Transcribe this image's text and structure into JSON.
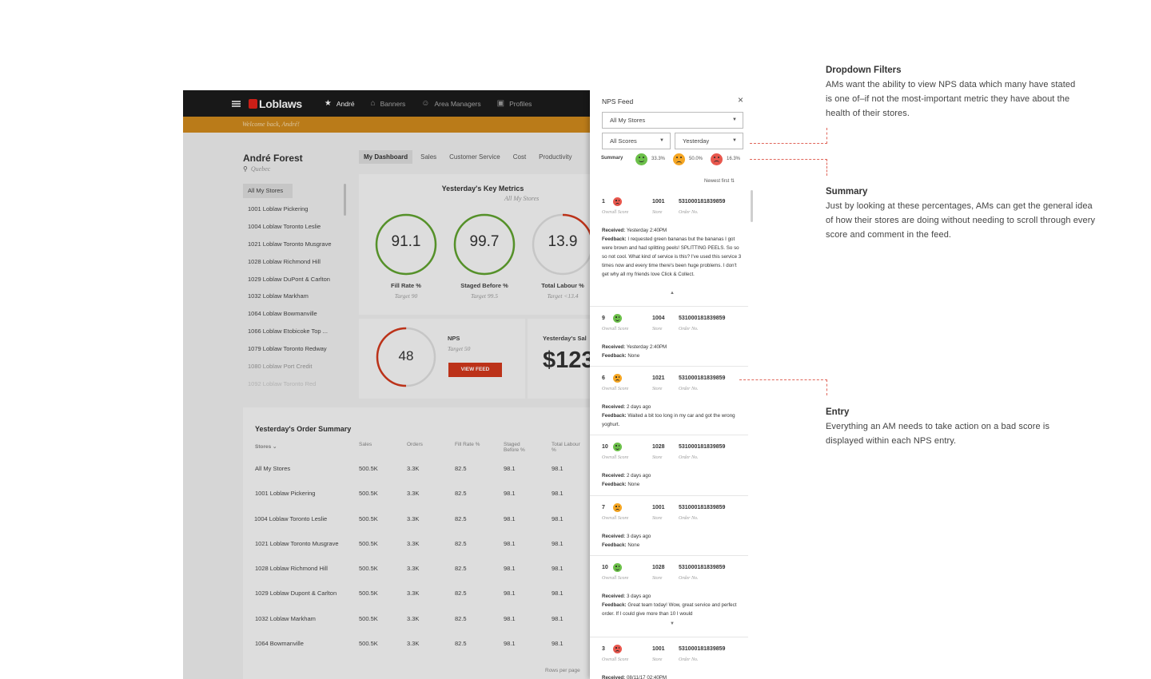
{
  "app": {
    "brand": "Loblaws",
    "nav": [
      {
        "label": "André",
        "icon": "star-icon"
      },
      {
        "label": "Banners",
        "icon": "storefront-icon"
      },
      {
        "label": "Area Managers",
        "icon": "people-icon"
      },
      {
        "label": "Profiles",
        "icon": "profile-card-icon"
      }
    ],
    "welcome": "Welcome back, André!",
    "user": {
      "name": "André Forest",
      "location": "Quebec"
    },
    "tabs": [
      "My Dashboard",
      "Sales",
      "Customer Service",
      "Cost",
      "Productivity"
    ],
    "stores": [
      "All My Stores",
      "1001 Loblaw Pickering",
      "1004 Loblaw Toronto Leslie",
      "1021 Loblaw Toronto Musgrave",
      "1028 Loblaw Richmond Hill",
      "1029 Loblaw DuPont & Carlton",
      "1032 Loblaw Markham",
      "1064 Loblaw Bowmanville",
      "1066 Loblaw Etobicoke Top ...",
      "1079 Loblaw Toronto Redway",
      "1080 Loblaw Port Credit",
      "1092 Loblaw Toronto Red"
    ],
    "metrics": {
      "title": "Yesterday's Key Metrics",
      "subtitle": "All My Stores",
      "gauges": [
        {
          "value": "91.1",
          "label": "Fill Rate %",
          "target": "Target 90",
          "fill": 1.0,
          "color": "#5fa22e"
        },
        {
          "value": "99.7",
          "label": "Staged Before %",
          "target": "Target 99.5",
          "fill": 1.0,
          "color": "#5fa22e"
        },
        {
          "value": "13.9",
          "label": "Total Labour %",
          "target": "Target <13.4",
          "fill": 0.25,
          "color": "#d2381c"
        }
      ]
    },
    "nps": {
      "value": "48",
      "fill": 0.5,
      "color": "#d2381c",
      "label": "NPS",
      "target": "Target 50",
      "button": "VIEW FEED"
    },
    "sales": {
      "label": "Yesterday's Sal",
      "value": "$123,"
    },
    "order_summary": {
      "title": "Yesterday's Order Summary",
      "columns": [
        "Stores",
        "Sales",
        "Orders",
        "Fill Rate %",
        "Staged Before %",
        "Total Labour %"
      ],
      "rows": [
        [
          "All My Stores",
          "500.5K",
          "3.3K",
          "82.5",
          "98.1",
          "98.1"
        ],
        [
          "1001 Loblaw Pickering",
          "500.5K",
          "3.3K",
          "82.5",
          "98.1",
          "98.1"
        ],
        [
          "1004 Loblaw Toronto Leslie",
          "500.5K",
          "3.3K",
          "82.5",
          "98.1",
          "98.1"
        ],
        [
          "1021 Loblaw Toronto Musgrave",
          "500.5K",
          "3.3K",
          "82.5",
          "98.1",
          "98.1"
        ],
        [
          "1028 Loblaw Richmond Hill",
          "500.5K",
          "3.3K",
          "82.5",
          "98.1",
          "98.1"
        ],
        [
          "1029 Loblaw Dupont & Carlton",
          "500.5K",
          "3.3K",
          "82.5",
          "98.1",
          "98.1"
        ],
        [
          "1032 Loblaw Markham",
          "500.5K",
          "3.3K",
          "82.5",
          "98.1",
          "98.1"
        ],
        [
          "1064 Bowmanville",
          "500.5K",
          "3.3K",
          "82.5",
          "98.1",
          "98.1"
        ]
      ],
      "rows_per_page": "Rows per page"
    }
  },
  "feed": {
    "title": "NPS Feed",
    "stores_filter": "All My Stores",
    "scores_filter": "All Scores",
    "date_filter": "Yesterday",
    "summary_label": "Summary",
    "summary": [
      {
        "mood": "happy",
        "pct": "33.3%"
      },
      {
        "mood": "neutral",
        "pct": "50.0%"
      },
      {
        "mood": "sad",
        "pct": "16.3%"
      }
    ],
    "sort": "Newest first",
    "captions": {
      "score": "Overall Score",
      "store": "Store",
      "order": "Order No."
    },
    "received_label": "Received:",
    "feedback_label": "Feedback:",
    "entries": [
      {
        "score": "1",
        "mood": "sad",
        "store": "1001",
        "order": "531000181839859",
        "received": "Yesterday 2:40PM",
        "feedback": "I requested green bananas but the bananas I got were brown and had splitting peels! SPLITTING PEELS. So so so not cool. What kind of service is this? I've used this service 3 times now and every time there's been huge problems.  I don't get why all my friends love Click & Collect.",
        "toggle": "▲"
      },
      {
        "score": "9",
        "mood": "happy",
        "store": "1004",
        "order": "531000181839859",
        "received": "Yesterday 2:40PM",
        "feedback": "None"
      },
      {
        "score": "6",
        "mood": "neutral",
        "store": "1021",
        "order": "531000181839859",
        "received": "2 days ago",
        "feedback": "Waited a bit too long in my car and got the wrong yoghurt."
      },
      {
        "score": "10",
        "mood": "happy",
        "store": "1028",
        "order": "531000181839859",
        "received": "2 days ago",
        "feedback": "None"
      },
      {
        "score": "7",
        "mood": "neutral",
        "store": "1001",
        "order": "531000181839859",
        "received": "3 days ago",
        "feedback": "None"
      },
      {
        "score": "10",
        "mood": "happy",
        "store": "1028",
        "order": "531000181839859",
        "received": "3 days ago",
        "feedback": "Great team today! Wow, great service and perfect order.  If I could give more than 10 I would",
        "toggle": "▼"
      },
      {
        "score": "3",
        "mood": "sad",
        "store": "1001",
        "order": "531000181839859",
        "received": "08/11/17 02:40PM",
        "feedback": ""
      }
    ]
  },
  "annotations": [
    {
      "title": "Dropdown Filters",
      "text": "AMs want the ability to view NPS data which many have stated is one of–if not the most-important metric they have about the health of their stores."
    },
    {
      "title": "Summary",
      "text": "Just by looking at these percentages, AMs can get the general idea of how their stores are doing without needing to scroll through every score and comment in the feed."
    },
    {
      "title": "Entry",
      "text": "Everything an AM needs to take action on a bad score is displayed within each NPS entry."
    }
  ]
}
